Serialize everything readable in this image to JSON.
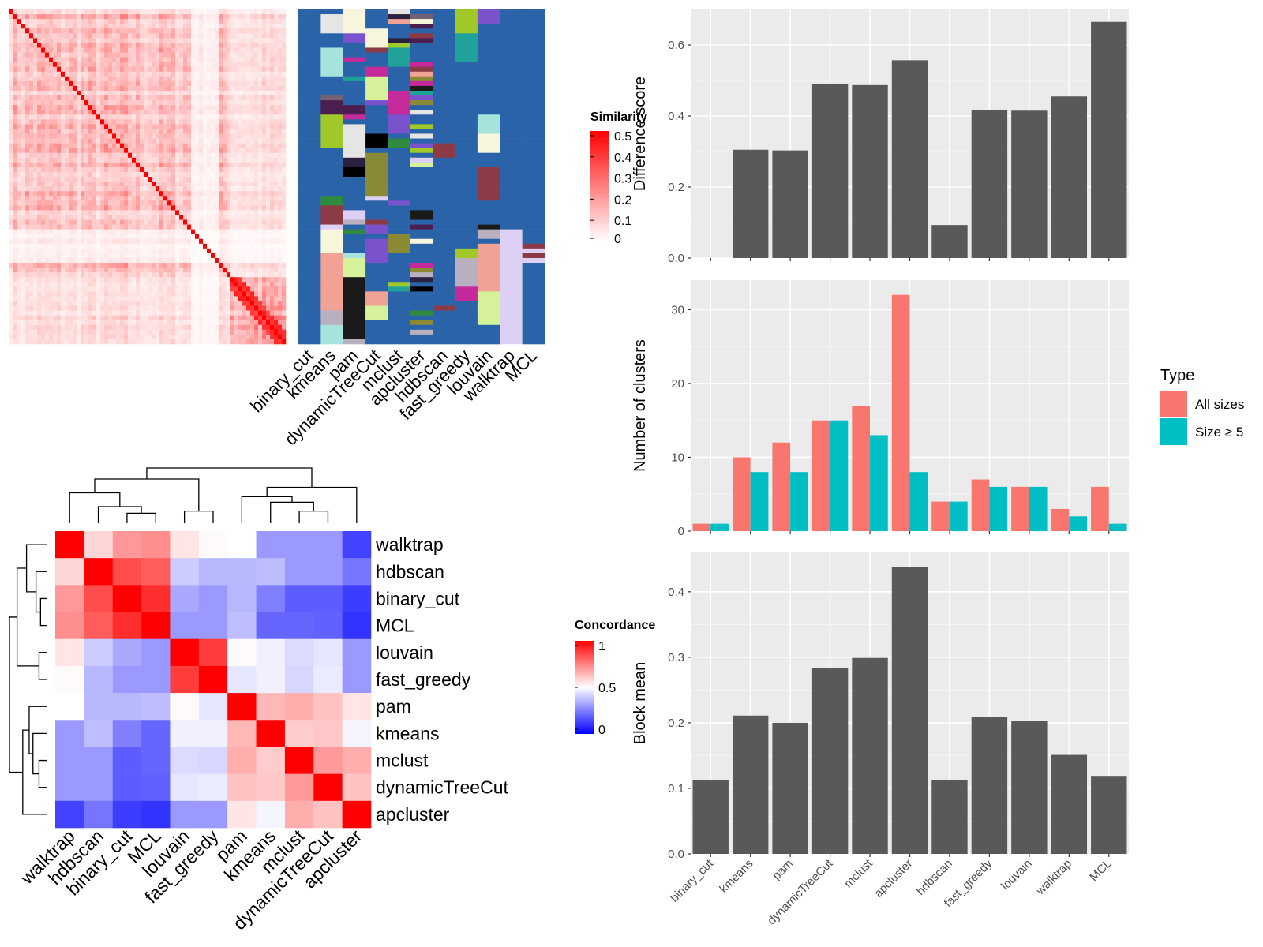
{
  "methods_order": [
    "binary_cut",
    "kmeans",
    "pam",
    "dynamicTreeCut",
    "mclust",
    "apcluster",
    "hdbscan",
    "fast_greedy",
    "louvain",
    "walktrap",
    "MCL"
  ],
  "similarity_legend": {
    "title": "Similarity",
    "ticks": [
      "0.5",
      "0.4",
      "0.3",
      "0.2",
      "0.1",
      "0"
    ],
    "colors": [
      "#ffffff",
      "#ff0000"
    ]
  },
  "concordance_legend": {
    "title": "Concordance",
    "ticks": [
      "1",
      "0.5",
      "0"
    ],
    "colors": [
      "#0000ff",
      "#ffffff",
      "#ff0000"
    ]
  },
  "palette": {
    "blue": "#2b63a9",
    "gray_bar": "#595959",
    "panel_bg": "#ebebeb",
    "salmon": "#f8766d",
    "teal": "#00bfc4"
  },
  "label_colors": [
    "#8b3a46",
    "#a6e3dc",
    "#4a1f4f",
    "#2e8b3e",
    "#e5e5e5",
    "#2b63a9",
    "#1a1a1a",
    "#dcd0f5",
    "#a0c828",
    "#7a52cc",
    "#000000",
    "#c52a9b",
    "#f2a195",
    "#d5f29a",
    "#716274",
    "#2a2040",
    "#20a29a",
    "#b8b0be",
    "#f7f5dc",
    "#8a8a35"
  ],
  "concordance": {
    "order": [
      "walktrap",
      "hdbscan",
      "binary_cut",
      "MCL",
      "louvain",
      "fast_greedy",
      "pam",
      "kmeans",
      "mclust",
      "dynamicTreeCut",
      "apcluster"
    ],
    "matrix": [
      [
        1.0,
        0.58,
        0.7,
        0.72,
        0.55,
        0.51,
        0.5,
        0.3,
        0.3,
        0.3,
        0.13
      ],
      [
        0.58,
        1.0,
        0.85,
        0.82,
        0.4,
        0.36,
        0.36,
        0.37,
        0.3,
        0.3,
        0.23
      ],
      [
        0.7,
        0.85,
        1.0,
        0.91,
        0.33,
        0.3,
        0.36,
        0.25,
        0.18,
        0.18,
        0.12
      ],
      [
        0.72,
        0.82,
        0.91,
        1.0,
        0.3,
        0.3,
        0.37,
        0.2,
        0.2,
        0.19,
        0.1
      ],
      [
        0.55,
        0.4,
        0.33,
        0.3,
        1.0,
        0.88,
        0.51,
        0.47,
        0.43,
        0.45,
        0.3
      ],
      [
        0.51,
        0.36,
        0.3,
        0.3,
        0.88,
        1.0,
        0.45,
        0.47,
        0.42,
        0.46,
        0.3
      ],
      [
        0.5,
        0.36,
        0.36,
        0.37,
        0.51,
        0.45,
        1.0,
        0.64,
        0.66,
        0.62,
        0.55
      ],
      [
        0.3,
        0.37,
        0.25,
        0.2,
        0.47,
        0.47,
        0.64,
        1.0,
        0.6,
        0.61,
        0.48
      ],
      [
        0.3,
        0.3,
        0.18,
        0.2,
        0.43,
        0.42,
        0.66,
        0.6,
        1.0,
        0.7,
        0.66
      ],
      [
        0.3,
        0.3,
        0.18,
        0.19,
        0.45,
        0.46,
        0.62,
        0.61,
        0.7,
        1.0,
        0.62
      ],
      [
        0.13,
        0.23,
        0.12,
        0.1,
        0.3,
        0.3,
        0.55,
        0.48,
        0.66,
        0.62,
        1.0
      ]
    ]
  },
  "chart_data": [
    {
      "type": "heatmap",
      "name": "similarity_matrix",
      "title": "",
      "legend_title": "Similarity",
      "range": [
        0,
        0.5
      ],
      "description_values": {
        "diagonal": 0.5
      }
    },
    {
      "type": "heatmap",
      "name": "cluster_label_matrix",
      "categories": [
        "binary_cut",
        "kmeans",
        "pam",
        "dynamicTreeCut",
        "mclust",
        "apcluster",
        "hdbscan",
        "fast_greedy",
        "louvain",
        "walktrap",
        "MCL"
      ]
    },
    {
      "type": "heatmap",
      "name": "concordance_matrix",
      "legend_title": "Concordance",
      "range": [
        0,
        1
      ],
      "categories": [
        "walktrap",
        "hdbscan",
        "binary_cut",
        "MCL",
        "louvain",
        "fast_greedy",
        "pam",
        "kmeans",
        "mclust",
        "dynamicTreeCut",
        "apcluster"
      ]
    },
    {
      "type": "bar",
      "name": "difference_score",
      "categories": [
        "binary_cut",
        "kmeans",
        "pam",
        "dynamicTreeCut",
        "mclust",
        "apcluster",
        "hdbscan",
        "fast_greedy",
        "louvain",
        "walktrap",
        "MCL"
      ],
      "values": [
        0.0,
        0.305,
        0.303,
        0.49,
        0.487,
        0.557,
        0.093,
        0.417,
        0.415,
        0.455,
        0.665
      ],
      "xlabel": "",
      "ylabel": "Difference score",
      "ylim": [
        0,
        0.7
      ],
      "yticks": [
        0.0,
        0.2,
        0.4,
        0.6
      ],
      "ytick_labels": [
        "0.0",
        "0.2",
        "0.4",
        "0.6"
      ],
      "grid": true
    },
    {
      "type": "bar",
      "name": "number_of_clusters",
      "categories": [
        "binary_cut",
        "kmeans",
        "pam",
        "dynamicTreeCut",
        "mclust",
        "apcluster",
        "hdbscan",
        "fast_greedy",
        "louvain",
        "walktrap",
        "MCL"
      ],
      "series": [
        {
          "name": "All sizes",
          "values": [
            1,
            10,
            12,
            15,
            17,
            32,
            4,
            7,
            6,
            3,
            6
          ]
        },
        {
          "name": "Size ≥ 5",
          "values": [
            1,
            8,
            8,
            15,
            13,
            8,
            4,
            6,
            6,
            2,
            1
          ]
        }
      ],
      "xlabel": "",
      "ylabel": "Number of clusters",
      "ylim": [
        0,
        34
      ],
      "yticks": [
        0,
        10,
        20,
        30
      ],
      "ytick_labels": [
        "0",
        "10",
        "20",
        "30"
      ],
      "legend_title": "Type",
      "legend_position": "right",
      "grid": true
    },
    {
      "type": "bar",
      "name": "block_mean",
      "categories": [
        "binary_cut",
        "kmeans",
        "pam",
        "dynamicTreeCut",
        "mclust",
        "apcluster",
        "hdbscan",
        "fast_greedy",
        "louvain",
        "walktrap",
        "MCL"
      ],
      "values": [
        0.112,
        0.211,
        0.2,
        0.283,
        0.299,
        0.438,
        0.113,
        0.209,
        0.203,
        0.151,
        0.119
      ],
      "xlabel": "",
      "ylabel": "Block mean",
      "ylim": [
        0,
        0.46
      ],
      "yticks": [
        0.0,
        0.1,
        0.2,
        0.3,
        0.4
      ],
      "ytick_labels": [
        "0.0",
        "0.1",
        "0.2",
        "0.3",
        "0.4"
      ],
      "grid": true
    }
  ]
}
